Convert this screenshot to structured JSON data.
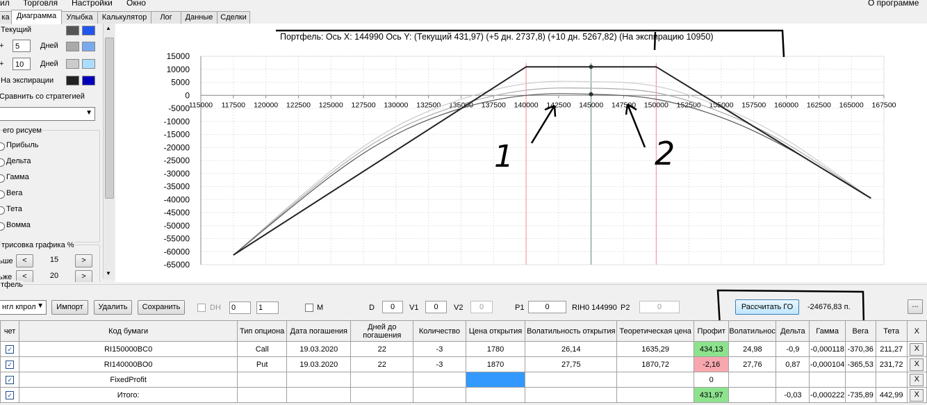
{
  "menu": [
    "ил",
    "Торговля",
    "Настройки",
    "Окно",
    "О программе"
  ],
  "tabs": [
    "ка",
    "Диаграмма",
    "Улыбка",
    "Калькулятор",
    "Лог",
    "Данные",
    "Сделки"
  ],
  "active_tab": "Диаграмма",
  "left": {
    "current_label": "Текущий",
    "plus1_sign": "+",
    "plus1_value": "5",
    "plus1_unit": "Дней",
    "plus2_sign": "+",
    "plus2_value": "10",
    "plus2_unit": "Дней",
    "expiration_label": "На экспирации",
    "compare_label": "Сравнить со стратегией",
    "what_draw_label": "его рисуем",
    "radios": [
      "Прибыль",
      "Дельта",
      "Гамма",
      "Вега",
      "Тета",
      "Вомма"
    ],
    "draw_group_label": "трисовка графика %",
    "more_label": "ьше",
    "more_value": "15",
    "less_label": "ьже",
    "less_value": "20",
    "colors": {
      "current": [
        "#555555",
        "#2255ee"
      ],
      "plus1": [
        "#aaaaaa",
        "#7aaaee"
      ],
      "plus2": [
        "#cccccc",
        "#aaddff"
      ],
      "expiration": [
        "#222222",
        "#0000bb"
      ]
    }
  },
  "chart_data": {
    "type": "line",
    "title": "Портфель: Ось X: 144990 Ось Y: (Текущий 431,97) (+5 дн. 2737,8) (+10 дн. 5267,82) (На экспирацию 10950)",
    "x_ticks": [
      115000,
      117500,
      120000,
      122500,
      125000,
      127500,
      130000,
      132500,
      135000,
      137500,
      140000,
      142500,
      145000,
      147500,
      150000,
      152500,
      155000,
      157500,
      160000,
      162500,
      165000,
      167500
    ],
    "y_ticks": [
      15000,
      10000,
      5000,
      0,
      -5000,
      -10000,
      -15000,
      -20000,
      -25000,
      -30000,
      -35000,
      -40000,
      -45000,
      -50000,
      -55000,
      -60000,
      -65000
    ],
    "xlim": [
      115000,
      167500
    ],
    "ylim": [
      -65000,
      15000
    ],
    "vlines": [
      140000,
      144990,
      150000
    ],
    "series": [
      {
        "points": [
          [
            117500,
            -61300
          ],
          [
            140000,
            10950
          ],
          [
            150000,
            10950
          ],
          [
            166500,
            -39500
          ]
        ],
        "color": "#222222"
      },
      {
        "points": [
          [
            117500,
            -61300
          ],
          [
            125000,
            -31000
          ],
          [
            130000,
            -15000
          ],
          [
            135000,
            -5000
          ],
          [
            140000,
            0
          ],
          [
            144990,
            432
          ],
          [
            150000,
            -1500
          ],
          [
            155000,
            -8500
          ],
          [
            160000,
            -20000
          ],
          [
            166500,
            -39500
          ]
        ],
        "color": "#555555"
      },
      {
        "points": [
          [
            117500,
            -61300
          ],
          [
            125000,
            -30000
          ],
          [
            130000,
            -13500
          ],
          [
            135000,
            -3500
          ],
          [
            140000,
            2000
          ],
          [
            144990,
            2738
          ],
          [
            150000,
            1000
          ],
          [
            155000,
            -6500
          ],
          [
            160000,
            -18500
          ],
          [
            166500,
            -39500
          ]
        ],
        "color": "#aaaaaa"
      },
      {
        "points": [
          [
            117500,
            -61300
          ],
          [
            125000,
            -29000
          ],
          [
            130000,
            -12000
          ],
          [
            135000,
            -1500
          ],
          [
            140000,
            4500
          ],
          [
            144990,
            5268
          ],
          [
            150000,
            3500
          ],
          [
            155000,
            -4500
          ],
          [
            160000,
            -17000
          ],
          [
            166500,
            -39500
          ]
        ],
        "color": "#cccccc"
      }
    ],
    "markers": [
      [
        144990,
        10950
      ],
      [
        144990,
        432
      ]
    ],
    "annotations": [
      "1",
      "2"
    ]
  },
  "portfolio": {
    "group_label": "тфель",
    "combo_value": "нгл кпрол",
    "import": "Импорт",
    "delete": "Удалить",
    "save": "Сохранить",
    "dh_label": "DH",
    "dh_v1": "0",
    "dh_v2": "1",
    "m_label": "M",
    "d_label": "D",
    "d_value": "0",
    "v1_label": "V1",
    "v1_value": "0",
    "v2_label": "V2",
    "v2_value": "0",
    "p1_label": "P1",
    "p1_value": "0",
    "rih_label": "RIH0 144990",
    "p2_label": "P2",
    "p2_value": "0",
    "calc_go": "Рассчитать ГО",
    "go_value": "-24676,83 п.",
    "dots": "..."
  },
  "table": {
    "headers": [
      "чет",
      "Код бумаги",
      "Тип опциона",
      "Дата погашения",
      "Дней до погашения",
      "Количество",
      "Цена открытия",
      "Волатильность открытия",
      "Теоретическая цена",
      "Профит",
      "Волатильность",
      "Дельта",
      "Гамма",
      "Вега",
      "Тета",
      "X"
    ],
    "rows": [
      [
        "✓",
        "RI150000BC0",
        "Call",
        "19.03.2020",
        "22",
        "-3",
        "1780",
        "26,14",
        "1635,29",
        "434,13",
        "24,98",
        "-0,9",
        "-0,000118",
        "-370,36",
        "211,27",
        "X"
      ],
      [
        "✓",
        "RI140000BO0",
        "Put",
        "19.03.2020",
        "22",
        "-3",
        "1870",
        "27,75",
        "1870,72",
        "-2,16",
        "27,76",
        "0,87",
        "-0,000104",
        "-365,53",
        "231,72",
        "X"
      ],
      [
        "✓",
        "FixedProfit",
        "",
        "",
        "",
        "",
        "",
        "",
        "",
        "0",
        "",
        "",
        "",
        "",
        "",
        "X"
      ],
      [
        "✓",
        "Итого:",
        "",
        "",
        "",
        "",
        "",
        "",
        "",
        "431,97",
        "",
        "-0,03",
        "-0,000222",
        "-735,89",
        "442,99",
        "X"
      ]
    ]
  }
}
